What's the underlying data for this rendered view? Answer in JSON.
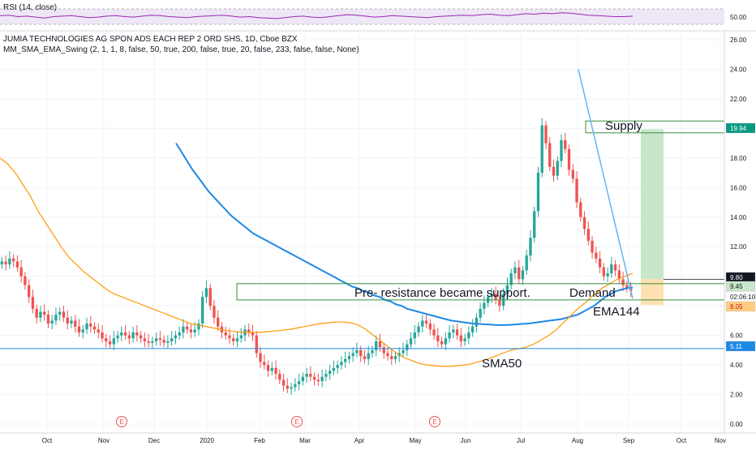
{
  "rsi_panel": {
    "label": "RSI (14, close)",
    "level_label": "50.00",
    "line_color": "#9c27b0",
    "fill_color": "#e1bee7",
    "values": [
      52,
      53,
      50,
      51,
      49,
      47,
      50,
      51,
      52,
      50,
      48,
      49,
      51,
      52,
      50,
      49,
      51,
      53,
      52,
      50,
      49,
      48,
      50,
      51,
      52,
      53,
      51,
      49,
      50,
      48,
      47,
      46,
      48,
      50,
      51,
      49,
      48,
      50,
      52,
      54,
      53,
      51,
      49,
      50,
      52,
      51,
      50,
      49,
      48,
      50,
      51,
      52,
      53,
      52,
      54,
      55,
      53,
      52,
      54,
      56,
      55,
      57,
      56,
      58,
      57,
      55,
      53,
      52,
      51,
      50,
      50,
      51
    ]
  },
  "header": {
    "symbol_title": "JUMIA TECHNOLOGIES AG SPON ADS EACH REP 2 ORD SHS, 1D, Cboe BZX",
    "indicator": "MM_SMA_EMA_Swing (2, 1, 1, 8, false, 50, true, 200, false, true, 20, false, 233, false, false, None)"
  },
  "annotations": {
    "supply": "Supply",
    "demand": "Demand",
    "resistance_note": "Pre- resistance became support.",
    "ema_label": "EMA144",
    "sma_label": "SMA50"
  },
  "earnings_marker_label": "E",
  "price_tags": [
    {
      "text": "19.94",
      "value": 19.94,
      "bg": "#089981",
      "fg": "#ffffff"
    },
    {
      "text": "9.80",
      "value": 9.8,
      "bg": "#131722",
      "fg": "#ffffff"
    },
    {
      "text": "9.45",
      "value": 9.45,
      "bg": "#c8e6c9",
      "fg": "#131722"
    },
    {
      "text": "02:06:10",
      "value": 8.7,
      "bg": "#ffffff",
      "fg": "#131722"
    },
    {
      "text": "8.05",
      "value": 8.05,
      "bg": "#ffcc80",
      "fg": "#b71c1c"
    },
    {
      "text": "5.11",
      "value": 5.11,
      "bg": "#1e88e5",
      "fg": "#ffffff"
    }
  ],
  "colors": {
    "ema_line": "#1e88e5",
    "sma_line": "#ff9800",
    "up_candle": "#26a69a",
    "down_candle": "#ef5350",
    "zone_line": "#388e3c",
    "trend_line": "#64b5f6",
    "target_zone": "#c8e6c9",
    "stop_zone": "#ffe0b2"
  },
  "chart_data": {
    "type": "candlestick",
    "title": "JUMIA TECHNOLOGIES AG SPON ADS EACH REP 2 ORD SHS, 1D, Cboe BZX",
    "y_axis": {
      "ticks": [
        0,
        2,
        4,
        6,
        8,
        10,
        12,
        14,
        16,
        18,
        20,
        22,
        24,
        26
      ],
      "tick_labels": [
        "0.00",
        "2.00",
        "4.00",
        "6.00",
        "8.00",
        "10.00",
        "12.00",
        "14.00",
        "16.00",
        "18.00",
        "20.00",
        "22.00",
        "24.00",
        "26.00"
      ],
      "range": [
        -0.6,
        26.6
      ]
    },
    "x_axis": {
      "categories": [
        "Oct",
        "Nov",
        "Dec",
        "2020",
        "Feb",
        "Mar",
        "Apr",
        "May",
        "Jun",
        "Jul",
        "Aug",
        "Sep",
        "Oct",
        "Nov"
      ]
    },
    "ohlc_closes": [
      11.0,
      10.8,
      11.2,
      11.0,
      10.6,
      10.0,
      9.4,
      8.6,
      7.8,
      7.2,
      7.6,
      7.4,
      6.8,
      7.0,
      7.4,
      7.6,
      7.2,
      6.8,
      7.0,
      6.6,
      6.2,
      6.4,
      6.8,
      6.6,
      6.4,
      6.2,
      5.8,
      5.6,
      5.4,
      5.8,
      6.0,
      6.2,
      6.0,
      5.8,
      6.2,
      6.0,
      5.8,
      5.6,
      5.5,
      5.6,
      5.8,
      5.7,
      5.5,
      5.6,
      5.8,
      6.0,
      6.2,
      6.6,
      6.4,
      6.2,
      6.4,
      6.8,
      8.6,
      9.2,
      8.0,
      7.2,
      6.6,
      6.2,
      6.0,
      5.8,
      5.6,
      5.8,
      6.0,
      6.4,
      6.2,
      6.0,
      4.8,
      4.2,
      4.0,
      3.6,
      3.8,
      3.4,
      3.0,
      2.6,
      2.4,
      2.5,
      2.7,
      2.9,
      3.2,
      3.4,
      3.2,
      3.0,
      2.9,
      3.2,
      3.4,
      3.6,
      3.8,
      4.0,
      4.2,
      4.4,
      4.6,
      4.8,
      5.0,
      4.6,
      4.4,
      4.8,
      5.0,
      5.6,
      5.2,
      4.8,
      4.6,
      4.4,
      4.6,
      4.8,
      5.0,
      5.4,
      5.8,
      6.2,
      6.6,
      7.0,
      6.8,
      6.4,
      6.0,
      5.6,
      5.4,
      5.8,
      6.2,
      6.4,
      6.0,
      5.6,
      5.8,
      6.2,
      6.6,
      7.2,
      7.8,
      8.2,
      8.6,
      8.8,
      8.4,
      8.0,
      8.8,
      9.4,
      10.2,
      10.6,
      9.8,
      10.4,
      11.4,
      12.6,
      14.4,
      17.0,
      20.2,
      19.0,
      17.4,
      16.8,
      17.8,
      19.2,
      18.6,
      17.2,
      16.6,
      15.0,
      14.0,
      13.2,
      12.4,
      11.6,
      11.2,
      10.6,
      10.0,
      10.2,
      10.8,
      10.4,
      9.8,
      9.4,
      9.2,
      9.0
    ],
    "ema144_values": [
      null,
      null,
      null,
      null,
      null,
      null,
      null,
      null,
      null,
      null,
      null,
      null,
      null,
      null,
      null,
      null,
      null,
      null,
      null,
      null,
      null,
      null,
      null,
      null,
      null,
      null,
      null,
      null,
      null,
      null,
      null,
      null,
      19.0,
      18.4,
      17.8,
      17.2,
      16.7,
      16.2,
      15.7,
      15.3,
      14.9,
      14.5,
      14.1,
      13.8,
      13.5,
      13.2,
      12.9,
      12.7,
      12.5,
      12.3,
      12.1,
      11.9,
      11.7,
      11.5,
      11.3,
      11.1,
      10.9,
      10.7,
      10.5,
      10.3,
      10.1,
      9.9,
      9.7,
      9.5,
      9.3,
      9.2,
      9.0,
      8.9,
      8.7,
      8.6,
      8.4,
      8.3,
      8.1,
      8.0,
      7.8,
      7.7,
      7.6,
      7.5,
      7.4,
      7.3,
      7.2,
      7.1,
      7.0,
      6.95,
      6.9,
      6.85,
      6.8,
      6.78,
      6.75,
      6.73,
      6.7,
      6.7,
      6.7,
      6.72,
      6.75,
      6.78,
      6.8,
      6.85,
      6.9,
      6.95,
      7.0,
      7.05,
      7.1,
      7.2,
      7.3,
      7.4,
      7.6,
      7.8,
      8.0,
      8.3,
      8.6,
      8.8,
      9.0,
      9.1,
      9.2,
      9.25
    ],
    "sma50_values": [
      18.0,
      17.6,
      17.0,
      16.2,
      15.4,
      14.4,
      13.6,
      12.8,
      12.0,
      11.3,
      10.8,
      10.3,
      9.9,
      9.5,
      9.1,
      8.8,
      8.6,
      8.4,
      8.2,
      8.0,
      7.8,
      7.6,
      7.4,
      7.2,
      7.0,
      6.8,
      6.7,
      6.6,
      6.5,
      6.4,
      6.3,
      6.25,
      6.2,
      6.2,
      6.2,
      6.25,
      6.3,
      6.35,
      6.4,
      6.5,
      6.6,
      6.7,
      6.8,
      6.85,
      6.9,
      6.9,
      6.85,
      6.7,
      6.4,
      6.0,
      5.6,
      5.2,
      4.8,
      4.5,
      4.3,
      4.1,
      4.0,
      3.95,
      3.9,
      3.9,
      3.95,
      4.0,
      4.1,
      4.25,
      4.4,
      4.6,
      4.8,
      5.0,
      5.1,
      5.2,
      5.4,
      5.7,
      6.0,
      6.4,
      6.9,
      7.4,
      7.9,
      8.3,
      8.8,
      9.2,
      9.5,
      9.8,
      10.0,
      10.2
    ],
    "levels": {
      "supply_top": 20.5,
      "supply_bottom": 19.7,
      "demand_top": 9.5,
      "demand_bottom": 8.4,
      "horizontal_support": 5.11,
      "target": 19.94,
      "entry": 9.8,
      "stop": 8.05
    },
    "trendline": {
      "from": 24.0,
      "to": 8.5
    }
  }
}
